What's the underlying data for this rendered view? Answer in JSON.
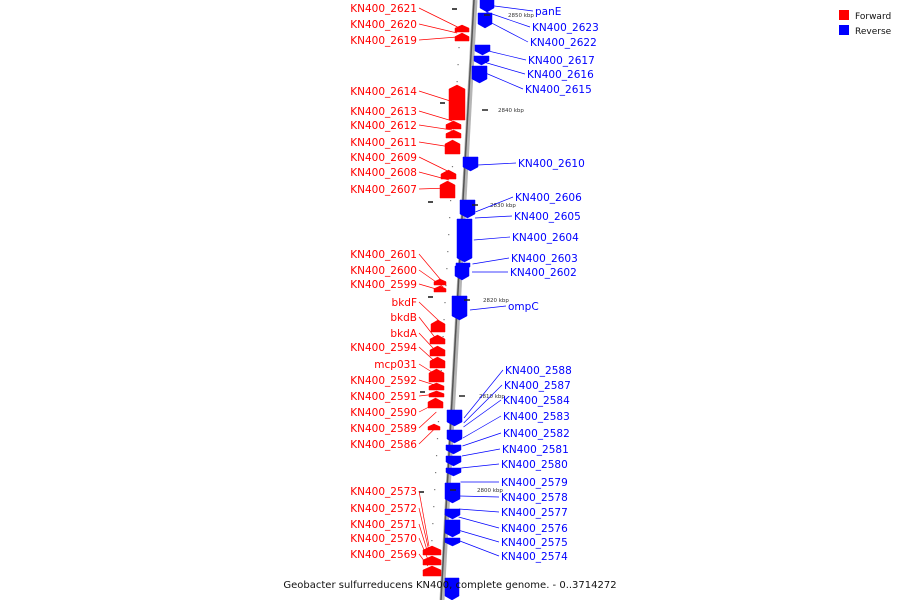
{
  "caption": "Geobacter sulfurreducens KN400, complete genome. - 0..3714272",
  "legend": [
    {
      "label": "Forward",
      "color": "#ff0000"
    },
    {
      "label": "Reverse",
      "color": "#0000ff"
    }
  ],
  "colors": {
    "forward": "#ff0000",
    "reverse": "#0000ff",
    "backbone": "#888888"
  },
  "ticks": [
    "2850 kbp",
    "2840 kbp",
    "2830 kbp",
    "2820 kbp",
    "2810 kbp",
    "2800 kbp"
  ],
  "forward_genes": [
    "KN400_2621",
    "KN400_2620",
    "KN400_2619",
    "KN400_2614",
    "KN400_2613",
    "KN400_2612",
    "KN400_2611",
    "KN400_2609",
    "KN400_2608",
    "KN400_2607",
    "KN400_2601",
    "KN400_2600",
    "KN400_2599",
    "bkdF",
    "bkdB",
    "bkdA",
    "KN400_2594",
    "mcp031",
    "KN400_2592",
    "KN400_2591",
    "KN400_2590",
    "KN400_2589",
    "KN400_2586",
    "KN400_2573",
    "KN400_2572",
    "KN400_2571",
    "KN400_2570",
    "KN400_2569"
  ],
  "reverse_genes": [
    "panE",
    "KN400_2623",
    "KN400_2622",
    "KN400_2617",
    "KN400_2616",
    "KN400_2615",
    "KN400_2610",
    "KN400_2606",
    "KN400_2605",
    "KN400_2604",
    "KN400_2603",
    "KN400_2602",
    "ompC",
    "KN400_2588",
    "KN400_2587",
    "KN400_2584",
    "KN400_2583",
    "KN400_2582",
    "KN400_2581",
    "KN400_2580",
    "KN400_2579",
    "KN400_2578",
    "KN400_2577",
    "KN400_2576",
    "KN400_2575",
    "KN400_2574"
  ]
}
